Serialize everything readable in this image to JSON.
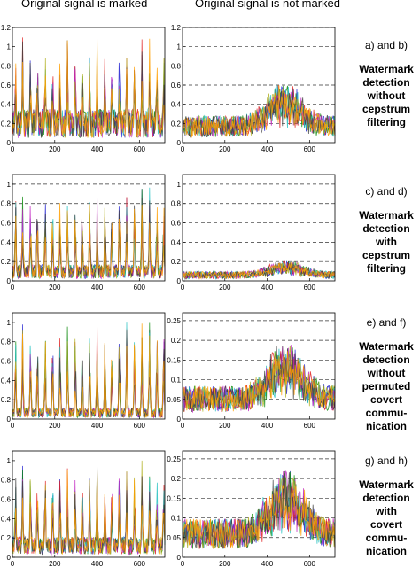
{
  "column_titles": {
    "left": "Original signal is marked",
    "right": "Original signal is not marked"
  },
  "rows": [
    {
      "pair_label": "a) and b)",
      "description": [
        "Watermark",
        "detection",
        "without",
        "cepstrum",
        "filtering"
      ]
    },
    {
      "pair_label": "c) and d)",
      "description": [
        "Watermark",
        "detection with",
        "cepstrum",
        "filtering"
      ]
    },
    {
      "pair_label": "e) and f)",
      "description": [
        "Watermark",
        "detection",
        "without",
        "permuted",
        "covert",
        "commu-",
        "nication"
      ]
    },
    {
      "pair_label": "g) and h)",
      "description": [
        "Watermark",
        "detection",
        "with",
        "covert",
        "commu-",
        "nication"
      ]
    }
  ],
  "chart_data": [
    {
      "type": "line",
      "panel": "a",
      "column": "marked",
      "xlim": [
        0,
        720
      ],
      "ylim": [
        0,
        1.2
      ],
      "xticks": [
        0,
        200,
        400,
        600
      ],
      "yticks": [
        0,
        0.2,
        0.4,
        0.6,
        0.8,
        1,
        1.2
      ],
      "ytick_labels": [
        "0",
        "0.2",
        "0.4",
        "0.6",
        "0.8",
        "1",
        "1.2"
      ],
      "grid": false,
      "peak_x": [
        15,
        48,
        85,
        118,
        155,
        190,
        225,
        260,
        297,
        330,
        365,
        400,
        437,
        470,
        505,
        540,
        577,
        612,
        648,
        683,
        715
      ],
      "peak_height": 1.1,
      "baseline": 0.25
    },
    {
      "type": "line",
      "panel": "b",
      "column": "not marked",
      "xlim": [
        0,
        720
      ],
      "ylim": [
        0,
        1.2
      ],
      "xticks": [
        0,
        200,
        400,
        600
      ],
      "yticks": [
        0,
        0.2,
        0.4,
        0.6,
        0.8,
        1,
        1.2
      ],
      "ytick_labels": [
        "0",
        "0.2",
        "0.4",
        "0.6",
        "0.8",
        "1",
        "1.2"
      ],
      "grid": true,
      "max_value": 0.6,
      "max_x": 480,
      "baseline": 0.2
    },
    {
      "type": "line",
      "panel": "c",
      "column": "marked",
      "xlim": [
        0,
        720
      ],
      "ylim": [
        0,
        1.1
      ],
      "xticks": [
        0,
        200,
        400,
        600
      ],
      "yticks": [
        0,
        0.2,
        0.4,
        0.6,
        0.8,
        1
      ],
      "ytick_labels": [
        "0",
        "0.2",
        "0.4",
        "0.6",
        "0.8",
        "1"
      ],
      "grid": true,
      "peak_x": [
        15,
        48,
        85,
        118,
        155,
        190,
        225,
        260,
        297,
        330,
        365,
        400,
        437,
        470,
        505,
        540,
        577,
        612,
        648,
        683,
        715
      ],
      "peak_height": 1.0,
      "baseline": 0.12
    },
    {
      "type": "line",
      "panel": "d",
      "column": "not marked",
      "xlim": [
        0,
        720
      ],
      "ylim": [
        0,
        1.1
      ],
      "xticks": [
        0,
        200,
        400,
        600
      ],
      "yticks": [
        0,
        0.2,
        0.4,
        0.6,
        0.8,
        1
      ],
      "ytick_labels": [
        "0",
        "0.2",
        "0.4",
        "0.6",
        "0.8",
        "1"
      ],
      "grid": true,
      "max_value": 0.2,
      "max_x": 490,
      "baseline": 0.07
    },
    {
      "type": "line",
      "panel": "e",
      "column": "marked",
      "xlim": [
        0,
        720
      ],
      "ylim": [
        0,
        1.1
      ],
      "xticks": [
        0,
        200,
        400,
        600
      ],
      "yticks": [
        0,
        0.2,
        0.4,
        0.6,
        0.8,
        1
      ],
      "ytick_labels": [
        "0",
        "0.2",
        "0.4",
        "0.6",
        "0.8",
        "1"
      ],
      "grid": false,
      "peak_x": [
        15,
        48,
        85,
        118,
        155,
        190,
        225,
        260,
        297,
        330,
        365,
        400,
        437,
        470,
        505,
        540,
        577,
        612,
        648,
        683,
        715
      ],
      "peak_height": 1.0,
      "baseline": 0.08
    },
    {
      "type": "line",
      "panel": "f",
      "column": "not marked",
      "xlim": [
        0,
        720
      ],
      "ylim": [
        0,
        0.27
      ],
      "xticks": [
        0,
        200,
        400,
        600
      ],
      "yticks": [
        0,
        0.05,
        0.1,
        0.15,
        0.2,
        0.25
      ],
      "ytick_labels": [
        "0",
        "0.05",
        "0.1",
        "0.15",
        "0.2",
        "0.25"
      ],
      "grid": true,
      "max_value": 0.19,
      "max_x": 490,
      "baseline": 0.06
    },
    {
      "type": "line",
      "panel": "g",
      "column": "marked",
      "xlim": [
        0,
        720
      ],
      "ylim": [
        0,
        1.1
      ],
      "xticks": [
        0,
        200,
        400,
        600
      ],
      "yticks": [
        0,
        0.2,
        0.4,
        0.6,
        0.8,
        1
      ],
      "ytick_labels": [
        "0",
        "0.2",
        "0.4",
        "0.6",
        "0.8",
        "1"
      ],
      "grid": false,
      "peak_x": [
        15,
        48,
        85,
        118,
        155,
        190,
        225,
        260,
        297,
        330,
        365,
        400,
        437,
        470,
        505,
        540,
        577,
        612,
        648,
        683,
        715
      ],
      "peak_height": 1.0,
      "baseline": 0.15
    },
    {
      "type": "line",
      "panel": "h",
      "column": "not marked",
      "xlim": [
        0,
        720
      ],
      "ylim": [
        0,
        0.27
      ],
      "xticks": [
        0,
        200,
        400,
        600
      ],
      "yticks": [
        0,
        0.05,
        0.1,
        0.15,
        0.2,
        0.25
      ],
      "ytick_labels": [
        "0",
        "0.05",
        "0.1",
        "0.15",
        "0.2",
        "0.25"
      ],
      "grid": true,
      "max_value": 0.22,
      "max_x": 490,
      "baseline": 0.07
    }
  ],
  "series_colors": [
    "#1f1fd0",
    "#0a8a0a",
    "#e02020",
    "#20c0c0",
    "#c020c0",
    "#b0b020",
    "#404040",
    "#ff9f00"
  ]
}
